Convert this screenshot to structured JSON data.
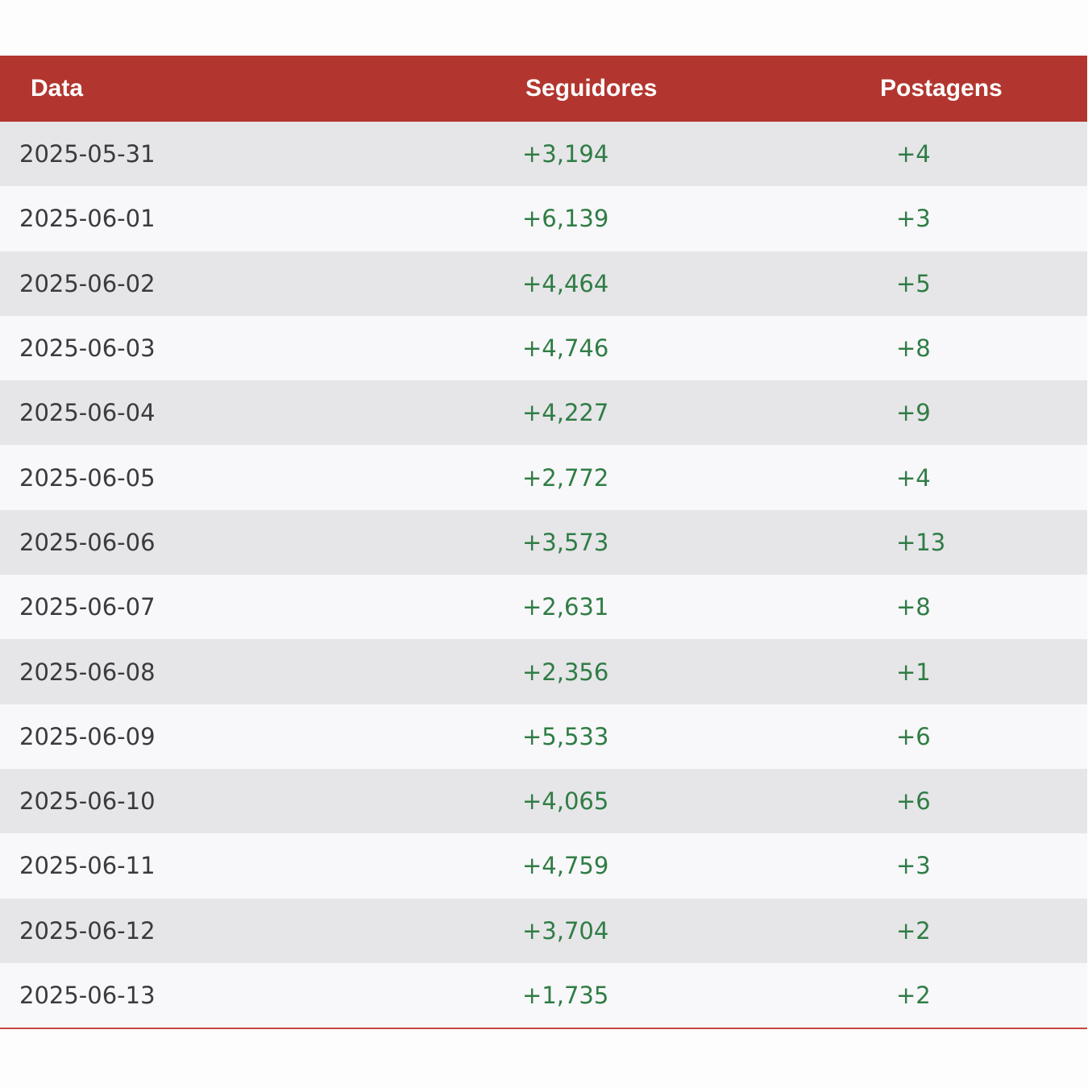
{
  "table": {
    "headers": {
      "date": "Data",
      "followers": "Seguidores",
      "posts": "Postagens"
    },
    "rows": [
      {
        "date": "2025-05-31",
        "followers": "+3,194",
        "posts": "+4"
      },
      {
        "date": "2025-06-01",
        "followers": "+6,139",
        "posts": "+3"
      },
      {
        "date": "2025-06-02",
        "followers": "+4,464",
        "posts": "+5"
      },
      {
        "date": "2025-06-03",
        "followers": "+4,746",
        "posts": "+8"
      },
      {
        "date": "2025-06-04",
        "followers": "+4,227",
        "posts": "+9"
      },
      {
        "date": "2025-06-05",
        "followers": "+2,772",
        "posts": "+4"
      },
      {
        "date": "2025-06-06",
        "followers": "+3,573",
        "posts": "+13"
      },
      {
        "date": "2025-06-07",
        "followers": "+2,631",
        "posts": "+8"
      },
      {
        "date": "2025-06-08",
        "followers": "+2,356",
        "posts": "+1"
      },
      {
        "date": "2025-06-09",
        "followers": "+5,533",
        "posts": "+6"
      },
      {
        "date": "2025-06-10",
        "followers": "+4,065",
        "posts": "+6"
      },
      {
        "date": "2025-06-11",
        "followers": "+4,759",
        "posts": "+3"
      },
      {
        "date": "2025-06-12",
        "followers": "+3,704",
        "posts": "+2"
      },
      {
        "date": "2025-06-13",
        "followers": "+1,735",
        "posts": "+2"
      }
    ]
  },
  "colors": {
    "header_bg": "#b2362f",
    "positive_text": "#2f7d45",
    "row_odd": "#e6e5e8",
    "row_even": "#f8f7f9"
  }
}
